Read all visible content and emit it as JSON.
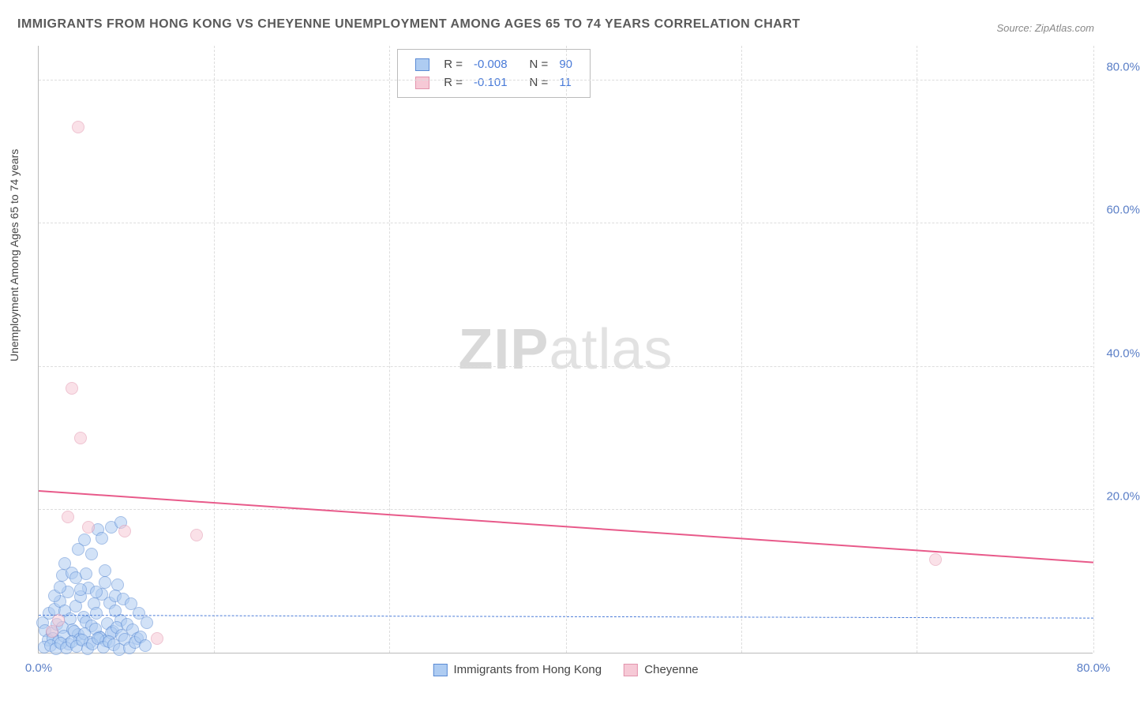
{
  "title": "IMMIGRANTS FROM HONG KONG VS CHEYENNE UNEMPLOYMENT AMONG AGES 65 TO 74 YEARS CORRELATION CHART",
  "source": "Source: ZipAtlas.com",
  "watermark_a": "ZIP",
  "watermark_b": "atlas",
  "chart": {
    "type": "scatter",
    "y_axis_label": "Unemployment Among Ages 65 to 74 years",
    "background_color": "#ffffff",
    "grid_color": "#dddddd",
    "axis_color": "#bbbbbb",
    "tick_color": "#5b7fc7",
    "tick_fontsize": 15,
    "title_fontsize": 16,
    "title_color": "#5a5a5a",
    "xlim": [
      0,
      80
    ],
    "ylim": [
      0,
      85
    ],
    "xticks": [
      0,
      80
    ],
    "yticks": [
      20,
      40,
      60,
      80
    ],
    "grid_y": [
      20,
      40,
      60,
      80
    ],
    "grid_x": [
      13.3,
      26.6,
      40,
      53.3,
      66.6,
      80
    ],
    "marker_radius": 8,
    "series": [
      {
        "name": "Immigrants from Hong Kong",
        "fill": "#aeccf2",
        "stroke": "#5b8bd4",
        "fill_opacity": 0.55,
        "R": "-0.008",
        "N": "90",
        "trend": {
          "y_at_x0": 5.2,
          "y_at_xmax": 4.8,
          "color": "#4a7bd8",
          "dash": "6,5",
          "width": 1.5
        },
        "points": [
          [
            0.3,
            4.2
          ],
          [
            0.5,
            3.1
          ],
          [
            0.8,
            5.5
          ],
          [
            1.0,
            2.8
          ],
          [
            1.2,
            6.1
          ],
          [
            1.4,
            4.0
          ],
          [
            1.6,
            7.2
          ],
          [
            1.8,
            3.5
          ],
          [
            2.0,
            5.8
          ],
          [
            2.2,
            8.5
          ],
          [
            2.4,
            4.7
          ],
          [
            2.6,
            3.2
          ],
          [
            2.8,
            6.5
          ],
          [
            3.0,
            2.5
          ],
          [
            3.2,
            7.8
          ],
          [
            3.4,
            5.0
          ],
          [
            3.6,
            4.3
          ],
          [
            3.8,
            9.1
          ],
          [
            4.0,
            3.8
          ],
          [
            4.2,
            6.9
          ],
          [
            4.4,
            5.5
          ],
          [
            4.6,
            2.2
          ],
          [
            4.8,
            8.2
          ],
          [
            5.0,
            11.5
          ],
          [
            5.2,
            4.1
          ],
          [
            5.4,
            7.0
          ],
          [
            5.6,
            3.0
          ],
          [
            5.8,
            5.9
          ],
          [
            6.0,
            9.5
          ],
          [
            6.2,
            4.5
          ],
          [
            0.7,
            1.8
          ],
          [
            1.1,
            2.0
          ],
          [
            1.5,
            1.5
          ],
          [
            1.9,
            2.3
          ],
          [
            2.3,
            1.2
          ],
          [
            2.7,
            3.0
          ],
          [
            3.1,
            1.9
          ],
          [
            3.5,
            2.6
          ],
          [
            3.9,
            1.4
          ],
          [
            4.3,
            3.3
          ],
          [
            4.7,
            2.1
          ],
          [
            5.1,
            1.7
          ],
          [
            5.5,
            2.8
          ],
          [
            5.9,
            3.5
          ],
          [
            6.3,
            2.4
          ],
          [
            6.7,
            4.0
          ],
          [
            7.1,
            3.2
          ],
          [
            7.5,
            2.0
          ],
          [
            0.4,
            0.8
          ],
          [
            0.9,
            1.0
          ],
          [
            1.3,
            0.5
          ],
          [
            1.7,
            1.3
          ],
          [
            2.1,
            0.7
          ],
          [
            2.5,
            1.5
          ],
          [
            2.9,
            0.9
          ],
          [
            3.3,
            1.8
          ],
          [
            3.7,
            0.6
          ],
          [
            4.1,
            1.2
          ],
          [
            4.5,
            2.0
          ],
          [
            4.9,
            0.8
          ],
          [
            5.3,
            1.6
          ],
          [
            5.7,
            1.1
          ],
          [
            6.1,
            0.4
          ],
          [
            6.5,
            1.9
          ],
          [
            6.9,
            0.7
          ],
          [
            7.3,
            1.4
          ],
          [
            7.7,
            2.2
          ],
          [
            8.1,
            1.0
          ],
          [
            1.8,
            10.8
          ],
          [
            2.5,
            11.2
          ],
          [
            3.5,
            15.8
          ],
          [
            4.5,
            17.2
          ],
          [
            4.8,
            16.0
          ],
          [
            5.5,
            17.5
          ],
          [
            6.2,
            18.2
          ],
          [
            3.0,
            14.5
          ],
          [
            2.0,
            12.5
          ],
          [
            4.0,
            13.8
          ],
          [
            1.2,
            8.0
          ],
          [
            1.6,
            9.2
          ],
          [
            2.8,
            10.5
          ],
          [
            3.2,
            8.8
          ],
          [
            3.6,
            11.0
          ],
          [
            4.4,
            8.5
          ],
          [
            5.0,
            9.8
          ],
          [
            5.8,
            8.0
          ],
          [
            6.4,
            7.5
          ],
          [
            7.0,
            6.8
          ],
          [
            7.6,
            5.5
          ],
          [
            8.2,
            4.2
          ]
        ]
      },
      {
        "name": "Cheyenne",
        "fill": "#f6c9d6",
        "stroke": "#e294ad",
        "fill_opacity": 0.55,
        "R": "-0.101",
        "N": "11",
        "trend": {
          "y_at_x0": 22.5,
          "y_at_xmax": 12.5,
          "color": "#e85a8a",
          "dash": "none",
          "width": 2
        },
        "points": [
          [
            3.0,
            73.5
          ],
          [
            2.5,
            37.0
          ],
          [
            3.2,
            30.0
          ],
          [
            2.2,
            19.0
          ],
          [
            3.8,
            17.5
          ],
          [
            6.5,
            17.0
          ],
          [
            12.0,
            16.5
          ],
          [
            9.0,
            2.0
          ],
          [
            68.0,
            13.0
          ],
          [
            1.5,
            4.5
          ],
          [
            1.0,
            3.0
          ]
        ]
      }
    ]
  },
  "legend_top_labels": {
    "R": "R =",
    "N": "N ="
  },
  "tick_suffix": "%"
}
